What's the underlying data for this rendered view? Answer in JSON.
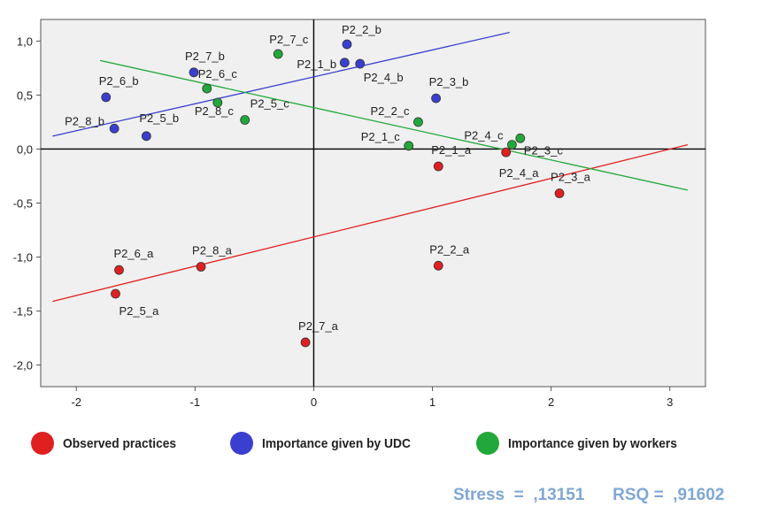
{
  "chart_data": {
    "type": "scatter",
    "title": "",
    "xlabel": "",
    "ylabel": "",
    "xlim": [
      -2.3,
      3.3
    ],
    "ylim": [
      -2.2,
      1.2
    ],
    "x_ticks": [
      -2,
      -1,
      0,
      1,
      2,
      3
    ],
    "y_ticks": [
      1.0,
      0.5,
      0.0,
      -0.5,
      -1.0,
      -1.5,
      -2.0
    ],
    "x_tick_labels": [
      "-2",
      "-1",
      "0",
      "1",
      "2",
      "3"
    ],
    "y_tick_labels": [
      "1,0",
      "0,5",
      "0,0",
      "-0,5",
      "-1,0",
      "-1,5",
      "-2,0"
    ],
    "grid": false,
    "series": [
      {
        "name": "Observed practices",
        "color": "#e02020",
        "points": [
          {
            "label": "P2_1_a",
            "x": 1.05,
            "y": -0.16
          },
          {
            "label": "P2_2_a",
            "x": 1.05,
            "y": -1.08
          },
          {
            "label": "P2_3_a",
            "x": 2.07,
            "y": -0.41
          },
          {
            "label": "P2_4_a",
            "x": 1.62,
            "y": -0.03
          },
          {
            "label": "P2_5_a",
            "x": -1.67,
            "y": -1.34
          },
          {
            "label": "P2_6_a",
            "x": -1.64,
            "y": -1.12
          },
          {
            "label": "P2_7_a",
            "x": -0.07,
            "y": -1.79
          },
          {
            "label": "P2_8_a",
            "x": -0.95,
            "y": -1.09
          }
        ],
        "fit_line": {
          "x1": -2.2,
          "y1": -1.41,
          "x2": 3.15,
          "y2": 0.04
        }
      },
      {
        "name": "Importance given by UDC",
        "color": "#3a3fd0",
        "points": [
          {
            "label": "P2_1_b",
            "x": 0.26,
            "y": 0.8
          },
          {
            "label": "P2_2_b",
            "x": 0.28,
            "y": 0.97
          },
          {
            "label": "P2_3_b",
            "x": 1.03,
            "y": 0.47
          },
          {
            "label": "P2_4_b",
            "x": 0.39,
            "y": 0.79
          },
          {
            "label": "P2_5_b",
            "x": -1.41,
            "y": 0.12
          },
          {
            "label": "P2_6_b",
            "x": -1.75,
            "y": 0.48
          },
          {
            "label": "P2_7_b",
            "x": -1.01,
            "y": 0.71
          },
          {
            "label": "P2_8_b",
            "x": -1.68,
            "y": 0.19
          }
        ],
        "fit_line": {
          "x1": -2.2,
          "y1": 0.12,
          "x2": 1.65,
          "y2": 1.08
        }
      },
      {
        "name": "Importance given by workers",
        "color": "#22a83a",
        "points": [
          {
            "label": "P2_1_c",
            "x": 0.8,
            "y": 0.03
          },
          {
            "label": "P2_2_c",
            "x": 0.88,
            "y": 0.25
          },
          {
            "label": "P2_3_c",
            "x": 1.74,
            "y": 0.1
          },
          {
            "label": "P2_4_c",
            "x": 1.67,
            "y": 0.04
          },
          {
            "label": "P2_5_c",
            "x": -0.58,
            "y": 0.27
          },
          {
            "label": "P2_6_c",
            "x": -0.9,
            "y": 0.56
          },
          {
            "label": "P2_7_c",
            "x": -0.3,
            "y": 0.88
          },
          {
            "label": "P2_8_c",
            "x": -0.81,
            "y": 0.43
          }
        ],
        "fit_line": {
          "x1": -1.8,
          "y1": 0.82,
          "x2": 3.15,
          "y2": -0.38
        }
      }
    ],
    "legend": {
      "position": "bottom",
      "items": [
        "Observed practices",
        "Importance given by UDC",
        "Importance given by workers"
      ]
    }
  },
  "stats": {
    "stress_label": "Stress  =",
    "stress_value": ",13151",
    "rsq_label": "RSQ =",
    "rsq_value": ",91602"
  }
}
